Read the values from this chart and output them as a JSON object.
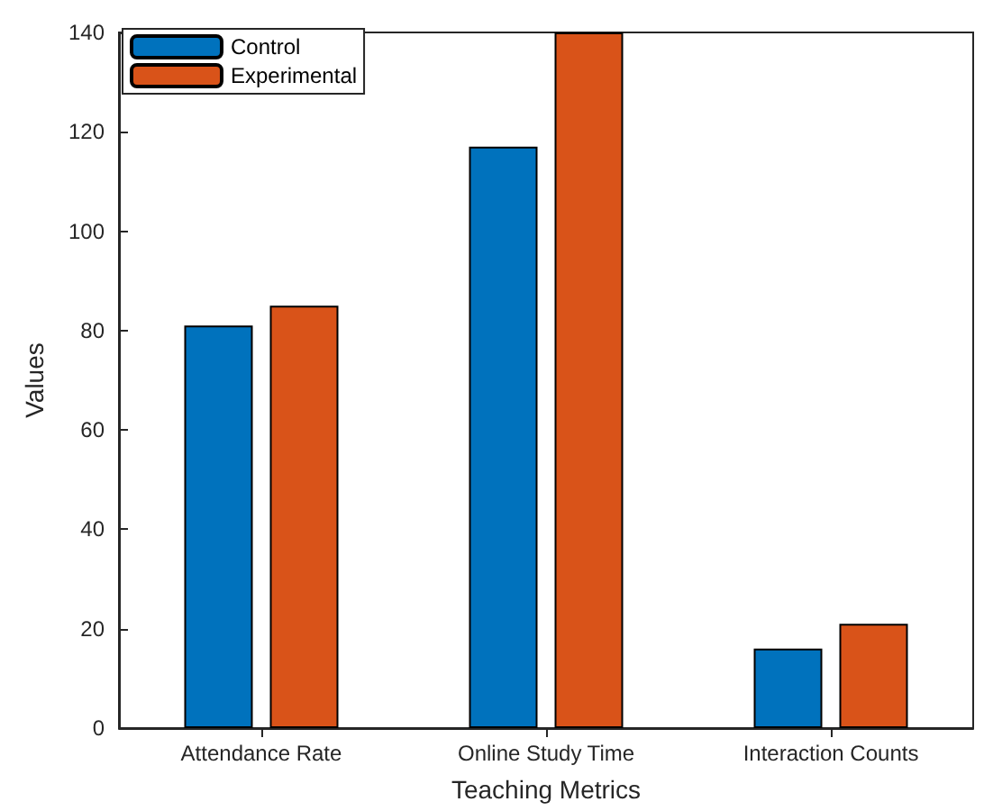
{
  "chart_data": {
    "type": "bar",
    "xlabel": "Teaching Metrics",
    "ylabel": "Values",
    "categories": [
      "Attendance Rate",
      "Online Study Time",
      "Interaction Counts"
    ],
    "series": [
      {
        "name": "Control",
        "color": "#0072bd",
        "values": [
          81,
          117,
          16
        ]
      },
      {
        "name": "Experimental",
        "color": "#d95319",
        "values": [
          85,
          140,
          21
        ]
      }
    ],
    "ylim": [
      0,
      140
    ],
    "yticks": [
      0,
      20,
      40,
      60,
      80,
      100,
      120,
      140
    ],
    "grid": false,
    "legend": "top left"
  }
}
